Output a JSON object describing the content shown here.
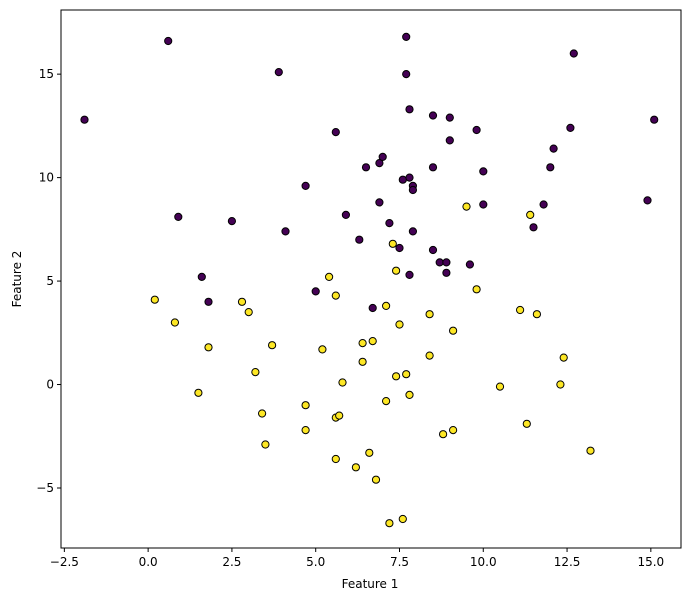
{
  "chart_data": {
    "type": "scatter",
    "title": "",
    "xlabel": "Feature 1",
    "ylabel": "Feature 2",
    "xlim": [
      -2.6,
      15.9
    ],
    "ylim": [
      -7.9,
      18.1
    ],
    "xticks": [
      -2.5,
      0.0,
      2.5,
      5.0,
      7.5,
      10.0,
      12.5,
      15.0
    ],
    "xtick_labels": [
      "−2.5",
      "0.0",
      "2.5",
      "5.0",
      "7.5",
      "10.0",
      "12.5",
      "15.0"
    ],
    "yticks": [
      -5,
      0,
      5,
      10,
      15
    ],
    "ytick_labels": [
      "−5",
      "0",
      "5",
      "10",
      "15"
    ],
    "grid": false,
    "marker_edge_color": "#000000",
    "series": [
      {
        "color": "#440154",
        "points": [
          [
            -1.9,
            12.8
          ],
          [
            0.6,
            16.6
          ],
          [
            0.9,
            8.1
          ],
          [
            1.6,
            5.2
          ],
          [
            1.8,
            4.0
          ],
          [
            2.5,
            7.9
          ],
          [
            3.9,
            15.1
          ],
          [
            4.1,
            7.4
          ],
          [
            4.7,
            9.6
          ],
          [
            5.0,
            4.5
          ],
          [
            5.6,
            12.2
          ],
          [
            5.9,
            8.2
          ],
          [
            6.3,
            7.0
          ],
          [
            6.5,
            10.5
          ],
          [
            6.7,
            3.7
          ],
          [
            6.9,
            10.7
          ],
          [
            6.9,
            8.8
          ],
          [
            7.0,
            11.0
          ],
          [
            7.2,
            7.8
          ],
          [
            7.5,
            6.6
          ],
          [
            7.6,
            9.9
          ],
          [
            7.7,
            16.8
          ],
          [
            7.7,
            15.0
          ],
          [
            7.8,
            13.3
          ],
          [
            7.8,
            10.0
          ],
          [
            7.8,
            5.3
          ],
          [
            7.9,
            9.6
          ],
          [
            7.9,
            9.4
          ],
          [
            7.9,
            7.4
          ],
          [
            8.5,
            13.0
          ],
          [
            8.5,
            10.5
          ],
          [
            8.5,
            6.5
          ],
          [
            8.7,
            5.9
          ],
          [
            8.9,
            5.9
          ],
          [
            8.9,
            5.4
          ],
          [
            9.0,
            12.9
          ],
          [
            9.0,
            11.8
          ],
          [
            9.6,
            5.8
          ],
          [
            9.8,
            12.3
          ],
          [
            10.0,
            10.3
          ],
          [
            10.0,
            8.7
          ],
          [
            11.5,
            7.6
          ],
          [
            11.8,
            8.7
          ],
          [
            12.0,
            10.5
          ],
          [
            12.1,
            11.4
          ],
          [
            12.6,
            12.4
          ],
          [
            12.7,
            16.0
          ],
          [
            14.9,
            8.9
          ],
          [
            15.1,
            12.8
          ]
        ]
      },
      {
        "color": "#fde725",
        "points": [
          [
            0.2,
            4.1
          ],
          [
            0.8,
            3.0
          ],
          [
            1.5,
            -0.4
          ],
          [
            1.8,
            1.8
          ],
          [
            2.8,
            4.0
          ],
          [
            3.0,
            3.5
          ],
          [
            3.2,
            0.6
          ],
          [
            3.4,
            -1.4
          ],
          [
            3.5,
            -2.9
          ],
          [
            3.7,
            1.9
          ],
          [
            4.7,
            -1.0
          ],
          [
            4.7,
            -2.2
          ],
          [
            5.2,
            1.7
          ],
          [
            5.4,
            5.2
          ],
          [
            5.6,
            4.3
          ],
          [
            5.6,
            -1.6
          ],
          [
            5.6,
            -3.6
          ],
          [
            5.7,
            -1.5
          ],
          [
            5.8,
            0.1
          ],
          [
            6.2,
            -4.0
          ],
          [
            6.4,
            2.0
          ],
          [
            6.4,
            1.1
          ],
          [
            6.6,
            -3.3
          ],
          [
            6.7,
            2.1
          ],
          [
            6.8,
            -4.6
          ],
          [
            7.1,
            3.8
          ],
          [
            7.1,
            -0.8
          ],
          [
            7.2,
            -6.7
          ],
          [
            7.3,
            6.8
          ],
          [
            7.4,
            5.5
          ],
          [
            7.4,
            0.4
          ],
          [
            7.5,
            2.9
          ],
          [
            7.6,
            -6.5
          ],
          [
            7.7,
            0.5
          ],
          [
            7.8,
            -0.5
          ],
          [
            8.4,
            3.4
          ],
          [
            8.4,
            1.4
          ],
          [
            8.8,
            -2.4
          ],
          [
            9.1,
            2.6
          ],
          [
            9.1,
            -2.2
          ],
          [
            9.5,
            8.6
          ],
          [
            9.8,
            4.6
          ],
          [
            10.5,
            -0.1
          ],
          [
            11.1,
            3.6
          ],
          [
            11.3,
            -1.9
          ],
          [
            11.4,
            8.2
          ],
          [
            11.6,
            3.4
          ],
          [
            12.3,
            0.0
          ],
          [
            12.4,
            1.3
          ],
          [
            13.2,
            -3.2
          ]
        ]
      }
    ]
  }
}
